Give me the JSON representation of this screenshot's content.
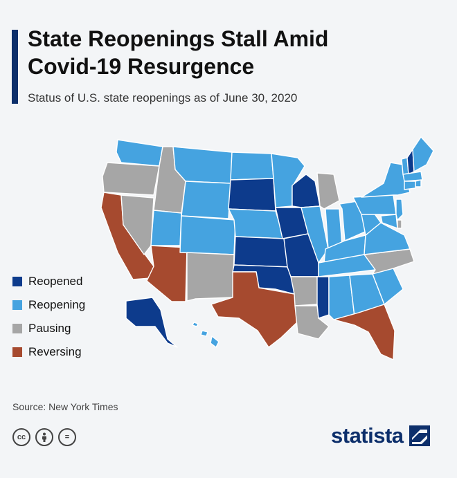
{
  "header": {
    "title_line1": "State Reopenings Stall Amid",
    "title_line2": "Covid-19 Resurgence",
    "subtitle": "Status of U.S. state reopenings as of June 30, 2020"
  },
  "legend": [
    {
      "label": "Reopened",
      "color": "#0d3b8c"
    },
    {
      "label": "Reopening",
      "color": "#45a3e0"
    },
    {
      "label": "Pausing",
      "color": "#a6a6a6"
    },
    {
      "label": "Reversing",
      "color": "#a64a2f"
    }
  ],
  "states": {
    "reopened": [
      "SD",
      "WI",
      "IA",
      "KS",
      "MO",
      "OK",
      "MS",
      "AK",
      "NH"
    ],
    "reopening": [
      "WA",
      "MT",
      "ND",
      "MN",
      "WY",
      "UT",
      "CO",
      "NE",
      "IL",
      "IN",
      "OH",
      "KY",
      "TN",
      "AL",
      "GA",
      "SC",
      "VA",
      "WV",
      "PA",
      "NY",
      "ME",
      "VT",
      "MA",
      "CT",
      "RI",
      "NJ",
      "MD",
      "HI"
    ],
    "pausing": [
      "OR",
      "ID",
      "NV",
      "NM",
      "AR",
      "LA",
      "MI",
      "NC",
      "DE"
    ],
    "reversing": [
      "CA",
      "AZ",
      "TX",
      "FL"
    ]
  },
  "footer": {
    "source": "Source: New York Times",
    "brand": "statista",
    "license_icons": [
      "cc-icon",
      "by-icon",
      "nd-icon"
    ],
    "license_glyphs": [
      "cc",
      "",
      "="
    ]
  }
}
